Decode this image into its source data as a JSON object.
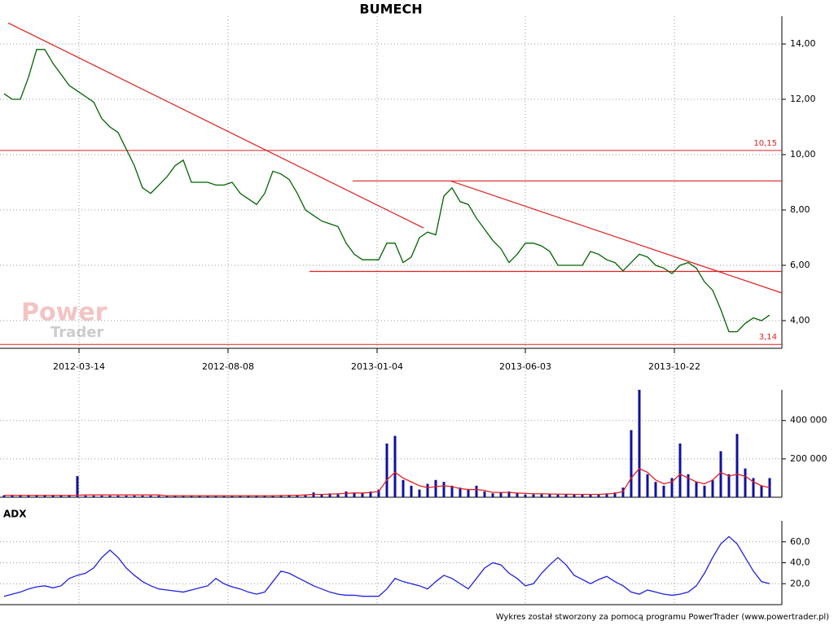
{
  "chart_data": {
    "type": "line",
    "title": "BUMECH",
    "adx_label": "ADX",
    "footer": "Wykres został stworzony za pomocą programu PowerTrader (www.powertrader.pl)",
    "watermark": [
      "Power",
      "Trader"
    ],
    "xlim": [
      -0.5,
      95.5
    ],
    "xticks": [
      {
        "value": 9.2,
        "label": "2012-03-14"
      },
      {
        "value": 27.5,
        "label": "2012-08-08"
      },
      {
        "value": 45.8,
        "label": "2013-01-04"
      },
      {
        "value": 64,
        "label": "2013-06-03"
      },
      {
        "value": 82.3,
        "label": "2013-10-22"
      }
    ],
    "price": {
      "color": "#006400",
      "ylim": [
        3,
        15
      ],
      "yticks": [
        {
          "value": 4,
          "label": "4,00"
        },
        {
          "value": 6,
          "label": "6,00"
        },
        {
          "value": 8,
          "label": "8,00"
        },
        {
          "value": 10,
          "label": "10,00"
        },
        {
          "value": 12,
          "label": "12,00"
        },
        {
          "value": 14,
          "label": "14,00"
        }
      ],
      "values": [
        12.2,
        12.0,
        12.0,
        12.8,
        13.8,
        13.8,
        13.3,
        12.9,
        12.5,
        12.3,
        12.1,
        11.9,
        11.3,
        11.0,
        10.8,
        10.2,
        9.6,
        8.8,
        8.6,
        8.9,
        9.2,
        9.6,
        9.8,
        9.0,
        9.0,
        9.0,
        8.9,
        8.9,
        9.0,
        8.6,
        8.4,
        8.2,
        8.6,
        9.4,
        9.3,
        9.1,
        8.6,
        8.0,
        7.8,
        7.6,
        7.5,
        7.4,
        6.8,
        6.4,
        6.2,
        6.2,
        6.2,
        6.8,
        6.8,
        6.1,
        6.3,
        7.0,
        7.2,
        7.1,
        8.5,
        8.8,
        8.3,
        8.2,
        7.7,
        7.3,
        6.9,
        6.6,
        6.1,
        6.4,
        6.8,
        6.8,
        6.7,
        6.5,
        6.0,
        6.0,
        6.0,
        6.0,
        6.5,
        6.4,
        6.2,
        6.1,
        5.8,
        6.1,
        6.4,
        6.3,
        6.0,
        5.9,
        5.7,
        6.0,
        6.1,
        5.9,
        5.4,
        5.1,
        4.4,
        3.6,
        3.6,
        3.9,
        4.1,
        4.0,
        4.2
      ],
      "levels": [
        {
          "value": 10.15,
          "label": "10,15"
        },
        {
          "value": 3.14,
          "label": "3,14"
        }
      ],
      "trend_lines": [
        {
          "x": [
            0.5,
            51.5
          ],
          "y": [
            14.76,
            7.35
          ]
        },
        {
          "x": [
            54.8,
            95.5
          ],
          "y": [
            9.05,
            5.0
          ]
        },
        {
          "x": [
            42.8,
            95.5
          ],
          "y": [
            9.05,
            9.05
          ]
        },
        {
          "x": [
            37.5,
            95.5
          ],
          "y": [
            5.78,
            5.78
          ]
        }
      ],
      "line_color": "#e02020"
    },
    "volume": {
      "color": "#1010a0",
      "ma_color": "#e02020",
      "ylim": [
        0,
        560000
      ],
      "yticks": [
        {
          "value": 200000,
          "label": "200 000"
        },
        {
          "value": 400000,
          "label": "400 000"
        }
      ],
      "values": [
        10000,
        10000,
        10000,
        10000,
        10000,
        10000,
        10000,
        10000,
        10000,
        110000,
        8000,
        8000,
        8000,
        8000,
        8000,
        8000,
        8000,
        8000,
        8000,
        8000,
        6000,
        6000,
        6000,
        6000,
        6000,
        6000,
        6000,
        6000,
        6000,
        6000,
        8000,
        8000,
        8000,
        8000,
        8000,
        10000,
        10000,
        12000,
        25000,
        15000,
        20000,
        15000,
        30000,
        25000,
        20000,
        30000,
        40000,
        280000,
        320000,
        90000,
        60000,
        40000,
        70000,
        90000,
        80000,
        60000,
        50000,
        40000,
        60000,
        30000,
        20000,
        25000,
        30000,
        20000,
        15000,
        15000,
        15000,
        15000,
        15000,
        15000,
        15000,
        15000,
        15000,
        15000,
        20000,
        25000,
        50000,
        350000,
        560000,
        120000,
        80000,
        60000,
        100000,
        280000,
        120000,
        80000,
        60000,
        90000,
        240000,
        120000,
        330000,
        150000,
        100000,
        60000,
        100000
      ],
      "ma": [
        10000,
        10000,
        10000,
        10000,
        10000,
        10000,
        10000,
        10000,
        10000,
        10000,
        12000,
        12000,
        12000,
        12000,
        12000,
        12000,
        12000,
        12000,
        12000,
        12000,
        8000,
        8000,
        8000,
        8000,
        8000,
        8000,
        8000,
        8000,
        8000,
        8000,
        8000,
        8000,
        8000,
        8000,
        9000,
        10000,
        10000,
        12000,
        15000,
        15000,
        16000,
        18000,
        20000,
        22000,
        22000,
        25000,
        30000,
        90000,
        130000,
        100000,
        80000,
        60000,
        50000,
        55000,
        60000,
        55000,
        45000,
        40000,
        40000,
        35000,
        25000,
        25000,
        25000,
        22000,
        20000,
        18000,
        18000,
        17000,
        16000,
        16000,
        15000,
        15000,
        15000,
        15000,
        17000,
        20000,
        30000,
        100000,
        150000,
        130000,
        90000,
        70000,
        80000,
        120000,
        100000,
        80000,
        70000,
        90000,
        130000,
        110000,
        120000,
        110000,
        80000,
        60000,
        50000
      ]
    },
    "adx": {
      "color": "#2020e0",
      "ylim": [
        0,
        80
      ],
      "yticks": [
        {
          "value": 20,
          "label": "20,0"
        },
        {
          "value": 40,
          "label": "40,0"
        },
        {
          "value": 60,
          "label": "60,0"
        }
      ],
      "values": [
        8,
        10,
        12,
        15,
        17,
        18,
        16,
        18,
        25,
        28,
        30,
        35,
        45,
        52,
        45,
        35,
        28,
        22,
        18,
        15,
        14,
        13,
        12,
        14,
        16,
        18,
        25,
        20,
        17,
        15,
        12,
        10,
        12,
        22,
        32,
        30,
        26,
        22,
        18,
        15,
        12,
        10,
        9,
        9,
        8,
        8,
        8,
        15,
        25,
        22,
        20,
        18,
        15,
        22,
        28,
        25,
        20,
        15,
        25,
        35,
        40,
        38,
        30,
        25,
        18,
        20,
        30,
        38,
        45,
        38,
        28,
        24,
        20,
        24,
        27,
        22,
        18,
        12,
        10,
        14,
        12,
        10,
        9,
        10,
        12,
        18,
        30,
        45,
        58,
        65,
        58,
        45,
        32,
        22,
        20
      ]
    }
  }
}
